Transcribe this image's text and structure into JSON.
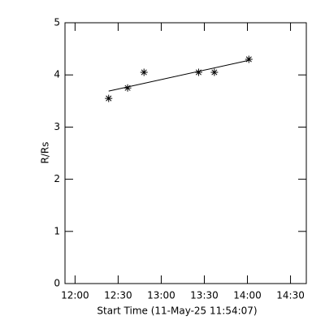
{
  "chart_data": {
    "type": "scatter",
    "xlabel": "Start Time (11-May-25 11:54:07)",
    "ylabel": "R/Rs",
    "xlim": [
      713,
      881
    ],
    "ylim": [
      0,
      5
    ],
    "xticks": [
      {
        "value": 720,
        "label": "12:00"
      },
      {
        "value": 750,
        "label": "12:30"
      },
      {
        "value": 780,
        "label": "13:00"
      },
      {
        "value": 810,
        "label": "13:30"
      },
      {
        "value": 840,
        "label": "14:00"
      },
      {
        "value": 870,
        "label": "14:30"
      }
    ],
    "yticks": [
      0,
      1,
      2,
      3,
      4,
      5
    ],
    "series": [
      {
        "color": "#000000",
        "marker": "asterisk",
        "x": [
          743.4,
          756.6,
          768,
          806,
          817,
          841
        ],
        "values": [
          3.55,
          3.75,
          4.05,
          4.05,
          4.05,
          4.3
        ]
      },
      {
        "color": "#000000",
        "marker": "line",
        "x": [
          743.4,
          841
        ],
        "values": [
          3.69,
          4.28
        ]
      }
    ]
  }
}
